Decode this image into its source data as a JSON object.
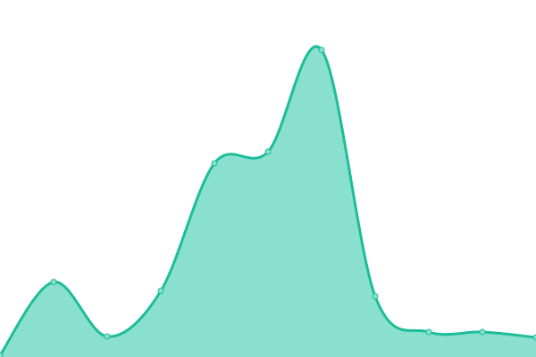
{
  "chart_data": {
    "type": "area",
    "title": "",
    "xlabel": "",
    "ylabel": "",
    "x": [
      0,
      1,
      2,
      3,
      4,
      5,
      6,
      7,
      8,
      9,
      10
    ],
    "values": [
      2,
      84,
      23,
      74,
      217,
      230,
      344,
      68,
      28,
      28,
      22
    ],
    "ylim": [
      0,
      400
    ],
    "xlim": [
      0,
      10
    ],
    "grid": false,
    "axes_visible": false,
    "smooth": true,
    "markers": true,
    "colors": {
      "line": "#1dbd9a",
      "fill": "#8ae0cf",
      "marker_fill": "#8ae0cf",
      "marker_stroke": "#1dbd9a"
    }
  }
}
